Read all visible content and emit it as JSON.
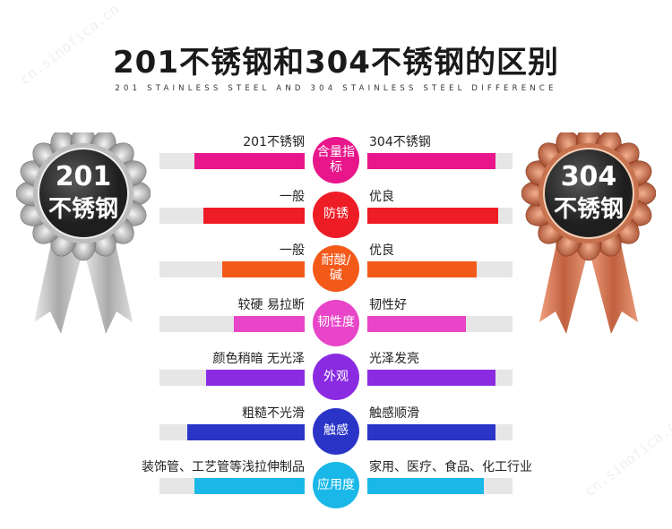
{
  "title": "201不锈钢和304不锈钢的区别",
  "subtitle": "201 STAINLESS STEEL AND 304 STAINLESS STEEL DIFFERENCE",
  "badge_left": {
    "line1": "201",
    "line2": "不锈钢",
    "color": "#8a8a8a"
  },
  "badge_right": {
    "line1": "304",
    "line2": "不锈钢",
    "color": "#b5583a"
  },
  "watermark": "cn.sinofica.cn",
  "rows": [
    {
      "left_label": "201不锈钢",
      "right_label": "304不锈钢",
      "center": "含量指标",
      "color": "#e8168a",
      "left_fill": 0.76,
      "right_fill": 0.88
    },
    {
      "left_label": "一般",
      "right_label": "优良",
      "center": "防锈",
      "color": "#ee1c25",
      "left_fill": 0.7,
      "right_fill": 0.9
    },
    {
      "left_label": "一般",
      "right_label": "优良",
      "center": "耐酸/碱",
      "color": "#f35a1a",
      "left_fill": 0.57,
      "right_fill": 0.75
    },
    {
      "left_label": "较硬 易拉断",
      "right_label": "韧性好",
      "center": "韧性度",
      "color": "#e845c8",
      "left_fill": 0.49,
      "right_fill": 0.68
    },
    {
      "left_label": "颜色稍暗 无光泽",
      "right_label": "光泽发亮",
      "center": "外观",
      "color": "#8a2be2",
      "left_fill": 0.68,
      "right_fill": 0.88
    },
    {
      "left_label": "粗糙不光滑",
      "right_label": "触感顺滑",
      "center": "触感",
      "color": "#2a35c8",
      "left_fill": 0.81,
      "right_fill": 0.88
    },
    {
      "left_label": "装饰管、工艺管等浅拉伸制品",
      "right_label": "家用、医疗、食品、化工行业",
      "center": "应用度",
      "color": "#1ab8e8",
      "left_fill": 0.76,
      "right_fill": 0.8
    }
  ]
}
